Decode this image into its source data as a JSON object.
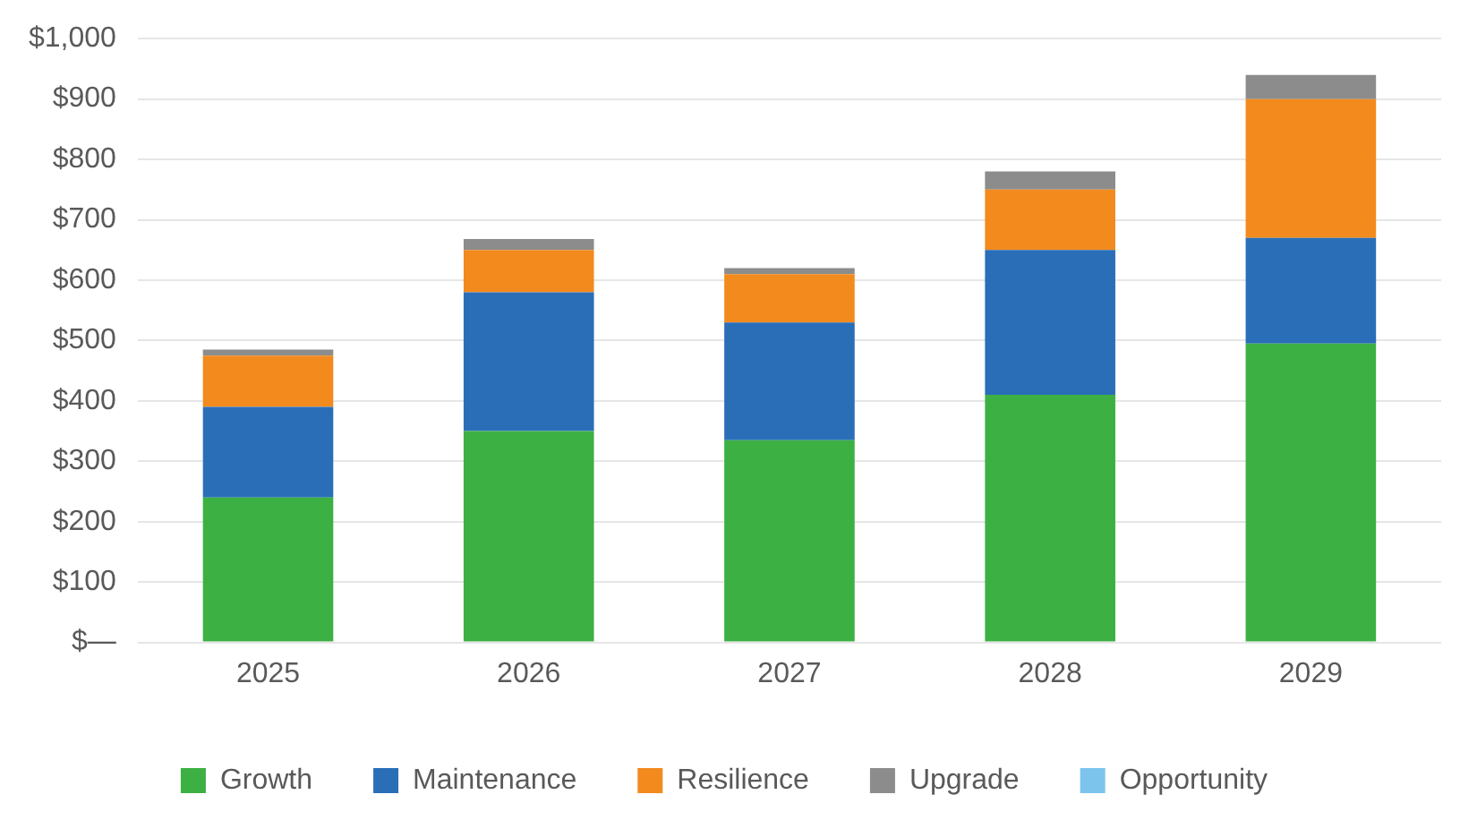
{
  "chart_data": {
    "type": "bar",
    "stacked": true,
    "categories": [
      "2025",
      "2026",
      "2027",
      "2028",
      "2029"
    ],
    "series": [
      {
        "name": "Growth",
        "color": "#3cb043",
        "values": [
          240,
          350,
          335,
          410,
          495
        ]
      },
      {
        "name": "Maintenance",
        "color": "#2a6eb8",
        "values": [
          150,
          230,
          195,
          240,
          175
        ]
      },
      {
        "name": "Resilience",
        "color": "#f28a1e",
        "values": [
          85,
          70,
          80,
          100,
          230
        ]
      },
      {
        "name": "Upgrade",
        "color": "#8c8c8c",
        "values": [
          10,
          18,
          10,
          30,
          40
        ]
      },
      {
        "name": "Opportunity",
        "color": "#7cc4ec",
        "values": [
          0,
          0,
          0,
          0,
          0
        ]
      }
    ],
    "ylim": [
      0,
      1000
    ],
    "yticks": [
      {
        "value": 0,
        "label": "$—"
      },
      {
        "value": 100,
        "label": "$100"
      },
      {
        "value": 200,
        "label": "$200"
      },
      {
        "value": 300,
        "label": "$300"
      },
      {
        "value": 400,
        "label": "$400"
      },
      {
        "value": 500,
        "label": "$500"
      },
      {
        "value": 600,
        "label": "$600"
      },
      {
        "value": 700,
        "label": "$700"
      },
      {
        "value": 800,
        "label": "$800"
      },
      {
        "value": 900,
        "label": "$900"
      },
      {
        "value": 1000,
        "label": "$1,000"
      }
    ],
    "grid": "y",
    "legend": "bottom"
  }
}
